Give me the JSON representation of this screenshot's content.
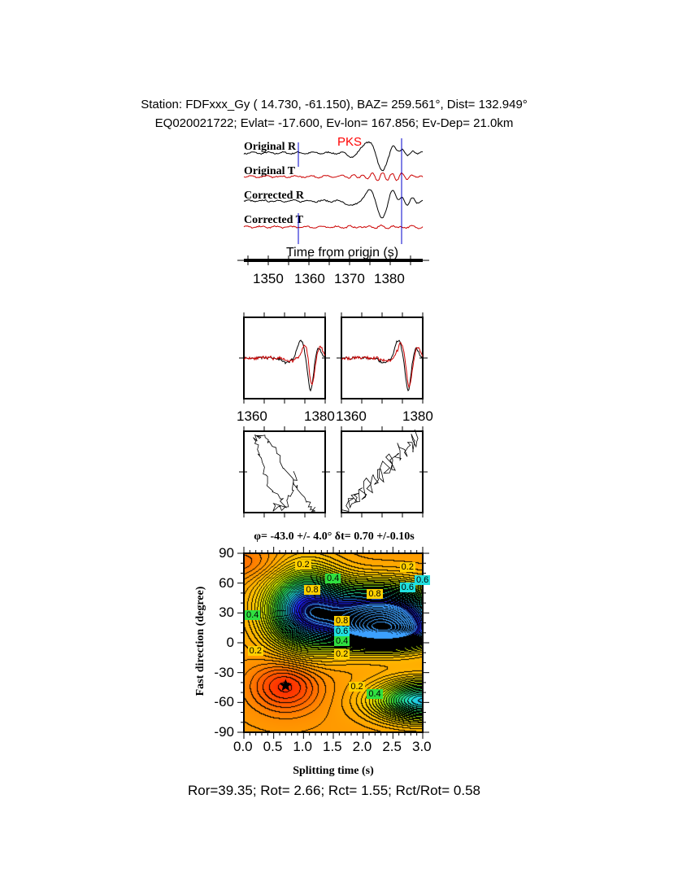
{
  "header": {
    "line1": "Station: FDFxxx_Gy (  14.730,  -61.150), BAZ=  259.561°, Dist=  132.949°",
    "line2": "EQ020021722; Evlat= -17.600, Ev-lon= 167.856; Ev-Dep= 21.0km"
  },
  "traces": {
    "phase": "PKS",
    "labels": [
      "Original R",
      "Original T",
      "Corrected R",
      "Corrected T"
    ],
    "xlabel": "Time from origin (s)",
    "xticks": [
      "1350",
      "1360",
      "1370",
      "1380"
    ],
    "window_start": 1357.4,
    "window_end": 1382.8,
    "colors": {
      "radial": "#000000",
      "transverse": "#cc0000",
      "window": "#0000cc",
      "phase_label": "#ff0000"
    }
  },
  "small_panels": {
    "xticks_left": [
      "1360",
      "1380"
    ],
    "xticks_right": [
      "1360",
      "1380"
    ]
  },
  "chart_data": {
    "type": "heatmap",
    "title": "φ= -43.0 +/- 4.0° δt= 0.70 +/-0.10s",
    "xlabel": "Splitting time (s)",
    "ylabel": "Fast direction (degree)",
    "xlim": [
      0.0,
      3.0
    ],
    "ylim": [
      -90,
      90
    ],
    "xticks": [
      "0.0",
      "0.5",
      "1.0",
      "1.5",
      "2.0",
      "2.5",
      "3.0"
    ],
    "yticks": [
      "90",
      "60",
      "30",
      "0",
      "-30",
      "-60",
      "-90"
    ],
    "best_fit": {
      "dt": 0.7,
      "phi": -43.0
    },
    "contour_labels": [
      {
        "text": "0.2",
        "x": 1.0,
        "y": 78
      },
      {
        "text": "0.2",
        "x": 2.75,
        "y": 75
      },
      {
        "text": "0.4",
        "x": 1.5,
        "y": 64
      },
      {
        "text": "0.6",
        "x": 3.0,
        "y": 62
      },
      {
        "text": "0.6",
        "x": 2.75,
        "y": 55
      },
      {
        "text": "0.8",
        "x": 1.15,
        "y": 52
      },
      {
        "text": "0.8",
        "x": 2.2,
        "y": 48
      },
      {
        "text": "0.4",
        "x": 0.15,
        "y": 27
      },
      {
        "text": "0.8",
        "x": 1.65,
        "y": 21
      },
      {
        "text": "0.6",
        "x": 1.65,
        "y": 11
      },
      {
        "text": "0.4",
        "x": 1.65,
        "y": 1
      },
      {
        "text": "0.2",
        "x": 0.2,
        "y": -9
      },
      {
        "text": "0.2",
        "x": 1.65,
        "y": -12
      },
      {
        "text": "0.2",
        "x": 1.9,
        "y": -45
      },
      {
        "text": "0.4",
        "x": 2.2,
        "y": -52
      }
    ],
    "colormap": [
      "#ff2000",
      "#ff8c00",
      "#ffd000",
      "#c8f000",
      "#30e040",
      "#20e0e0",
      "#2020ff",
      "#000000"
    ]
  },
  "footer": "Ror=39.35; Rot= 2.66; Rct= 1.55; Rct/Rot= 0.58"
}
